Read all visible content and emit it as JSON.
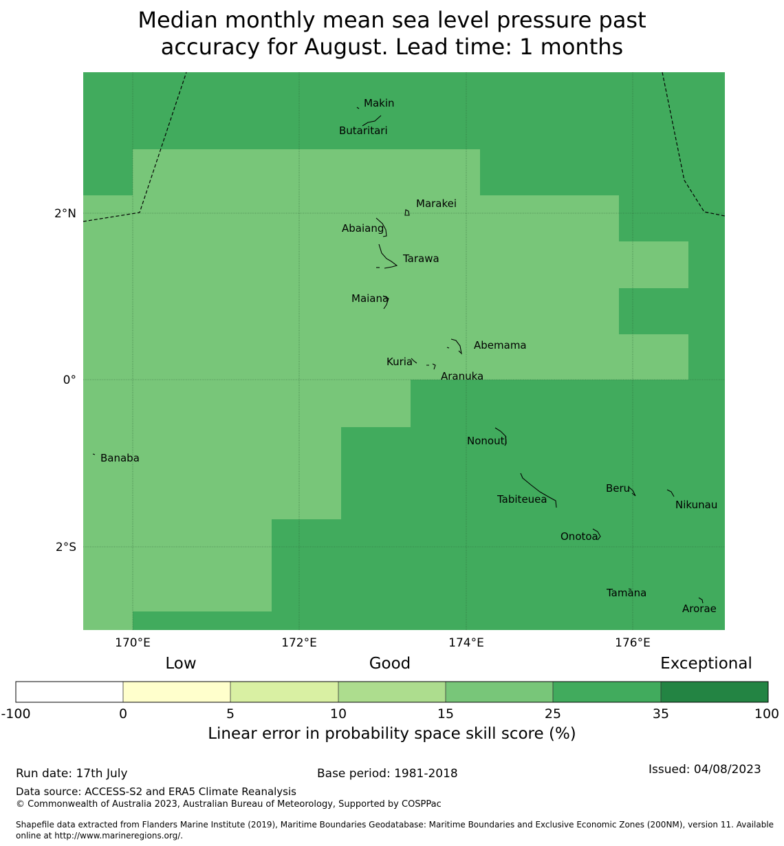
{
  "title": {
    "line1": "Median monthly mean sea level pressure past",
    "line2": "accuracy for August. Lead time: 1 months"
  },
  "map": {
    "lon_labels": [
      "170°E",
      "172°E",
      "174°E",
      "176°E"
    ],
    "lat_labels": [
      "2°N",
      "0°",
      "2°S"
    ],
    "places": [
      "Makin",
      "Butaritari",
      "Marakei",
      "Abaiang",
      "Tarawa",
      "Maiana",
      "Abemama",
      "Kuria",
      "Aranuka",
      "Banaba",
      "Nonouti",
      "Beru",
      "Tabiteuea",
      "Nikunau",
      "Onotoa",
      "Tamana",
      "Arorae"
    ],
    "colors": {
      "skill_15_25": "#78c679",
      "skill_25_35": "#41ab5d"
    }
  },
  "colorbar": {
    "tiers": [
      "Low",
      "Good",
      "Exceptional"
    ],
    "ticks": [
      "-100",
      "0",
      "5",
      "10",
      "15",
      "25",
      "35",
      "100"
    ],
    "colors": [
      "#ffffff",
      "#ffffcc",
      "#d9f0a3",
      "#addd8e",
      "#78c679",
      "#41ab5d",
      "#238443"
    ],
    "title": "Linear error in probability space skill score (%)"
  },
  "footer": {
    "run_date": "Run date: 17th July",
    "base_period": "Base period: 1981-2018",
    "issued": "Issued: 04/08/2023",
    "data_source": "Data source: ACCESS-S2 and ERA5 Climate Reanalysis",
    "copyright": "© Commonwealth of Australia 2023, Australian Bureau of Meteorology, Supported by COSPPac",
    "shapefile_line1": "Shapefile data extracted from Flanders Marine Institute (2019), Maritime Boundaries Geodatabase: Maritime Boundaries and Exclusive Economic Zones (200NM), version 11. Available",
    "shapefile_line2": "online at http://www.marineregions.org/."
  }
}
